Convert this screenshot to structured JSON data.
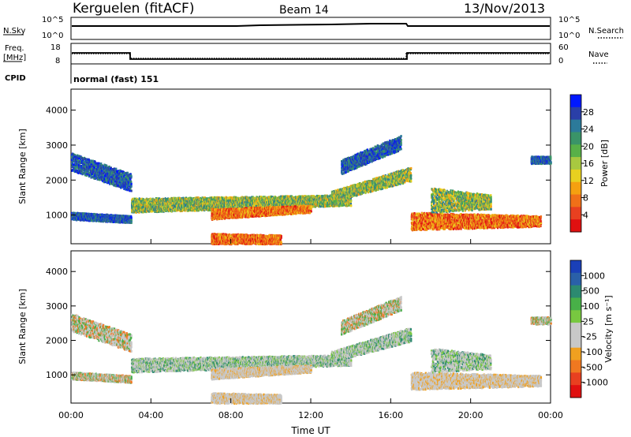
{
  "header": {
    "station": "Kerguelen (fitACF)",
    "beam": "Beam 14",
    "date": "13/Nov/2013"
  },
  "sky_panel": {
    "left_label": "N.Sky",
    "right_label": "N.Search",
    "left_ticks": [
      "10^5",
      "10^0"
    ],
    "right_ticks": [
      "10^5",
      "10^0"
    ]
  },
  "freq_panel": {
    "left_label_line1": "Freq.",
    "left_label_line2": "[MHz]",
    "right_label": "Nave",
    "left_ticks": [
      "18",
      "8"
    ],
    "right_ticks": [
      "60",
      "0"
    ]
  },
  "cpid_panel": {
    "label": "CPID",
    "value": "normal (fast) 151"
  },
  "chart_data": [
    {
      "type": "heatmap",
      "panel": "power",
      "ylabel": "Slant Range [km]",
      "ylim": [
        180,
        4600
      ],
      "yticks": [
        "1000",
        "2000",
        "3000",
        "4000"
      ],
      "colorbar_label": "Power [dB]",
      "colorbar_ticks": [
        "28",
        "24",
        "20",
        "16",
        "12",
        "8",
        "4"
      ],
      "colorbar_colors": [
        "#0018ff",
        "#2a3fa8",
        "#2c7a9a",
        "#3a9468",
        "#58b048",
        "#a8c840",
        "#e8d020",
        "#f5a010",
        "#f07018",
        "#e84020",
        "#e01010"
      ]
    },
    {
      "type": "heatmap",
      "panel": "velocity",
      "ylabel": "Slant Range [km]",
      "ylim": [
        180,
        4600
      ],
      "yticks": [
        "1000",
        "2000",
        "3000",
        "4000"
      ],
      "colorbar_label": "Velocity [m s⁻¹]",
      "colorbar_ticks": [
        "1000",
        "500",
        "100",
        "25",
        "-25",
        "-100",
        "-500",
        "-1000"
      ],
      "colorbar_colors": [
        "#1a40b8",
        "#2a60a8",
        "#2c8a70",
        "#48b048",
        "#78c840",
        "#c8c8c8",
        "#c8c8c8",
        "#f0a020",
        "#f07820",
        "#e84020",
        "#e01010"
      ]
    }
  ],
  "x_axis": {
    "ticks": [
      "00:00",
      "04:00",
      "08:00",
      "12:00",
      "16:00",
      "20:00",
      "00:00"
    ],
    "label": "Time UT"
  }
}
